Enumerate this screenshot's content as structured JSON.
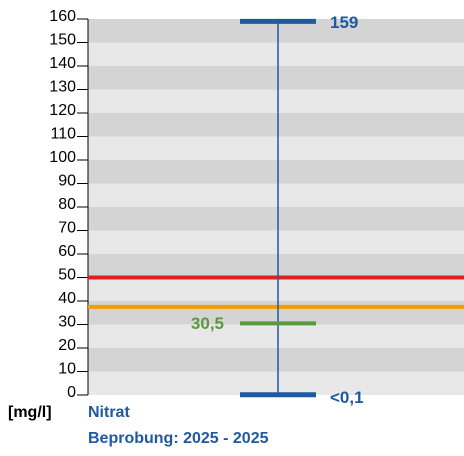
{
  "chart_data": {
    "type": "range",
    "ylabel": "[mg/l]",
    "title": "Nitrat",
    "subtitle": "Beprobung: 2025 - 2025",
    "values": [
      159,
      30.5,
      0.1
    ],
    "value_labels": [
      "159",
      "30,5",
      "<0,1"
    ],
    "colors": [
      "#1f5aa0",
      "#5a9a3c",
      "#1f5aa0"
    ],
    "reference_lines": [
      {
        "value": 50,
        "color": "#e02020"
      },
      {
        "value": 37.5,
        "color": "#f59a00"
      }
    ],
    "band_colors": [
      "#e8e8e8",
      "#d4d4d4"
    ],
    "ylim": [
      0,
      160
    ],
    "yticks": [
      0,
      10,
      20,
      30,
      40,
      50,
      60,
      70,
      80,
      90,
      100,
      110,
      120,
      130,
      140,
      150,
      160
    ]
  }
}
